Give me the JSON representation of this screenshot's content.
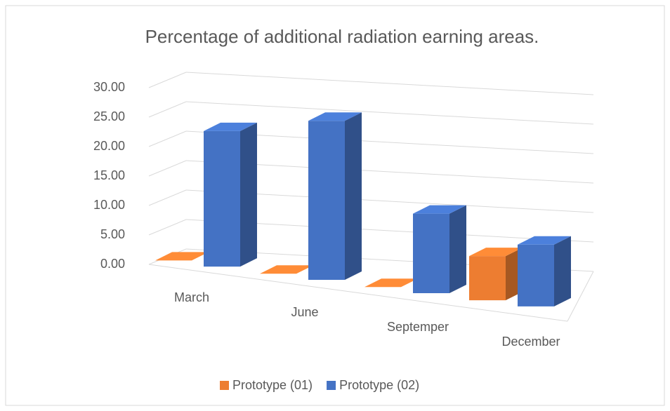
{
  "chart_data": {
    "type": "bar3d",
    "title": "Percentage of additional radiation earning areas.",
    "categories": [
      "March",
      "June",
      "Septemper",
      "December"
    ],
    "series": [
      {
        "name": "Prototype (01)",
        "color": "#ed7d31",
        "values": [
          0,
          0,
          0,
          7.5
        ]
      },
      {
        "name": "Prototype (02)",
        "color": "#4472c4",
        "values": [
          23,
          27,
          13.5,
          10.5
        ]
      }
    ],
    "ylim": [
      0,
      30
    ],
    "yticks": [
      {
        "value": 0,
        "label": "0.00"
      },
      {
        "value": 5,
        "label": "5.00"
      },
      {
        "value": 10,
        "label": "10.00"
      },
      {
        "value": 15,
        "label": "15.00"
      },
      {
        "value": 20,
        "label": "20.00"
      },
      {
        "value": 25,
        "label": "25.00"
      },
      {
        "value": 30,
        "label": "30.00"
      }
    ],
    "grid": true,
    "legend": "bottom"
  }
}
